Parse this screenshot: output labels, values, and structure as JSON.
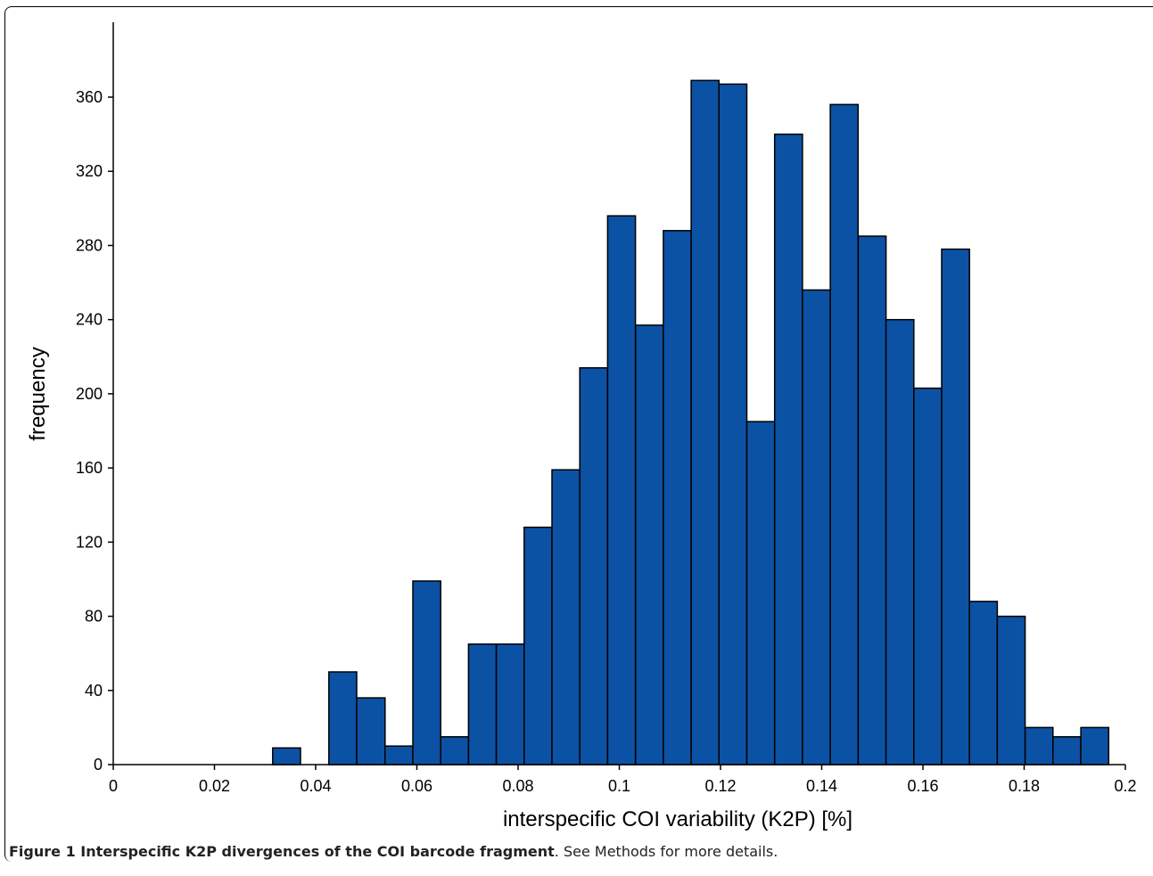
{
  "chart_data": {
    "type": "bar",
    "title": "",
    "xlabel": "interspecific COI variability (K2P) [%]",
    "ylabel": "frequency",
    "xlim": [
      0,
      0.2
    ],
    "ylim": [
      0,
      400
    ],
    "x_ticks": [
      "0",
      "0.02",
      "0.04",
      "0.06",
      "0.08",
      "0.1",
      "0.12",
      "0.14",
      "0.16",
      "0.18",
      "0.2"
    ],
    "y_ticks": [
      "0",
      "40",
      "80",
      "120",
      "160",
      "200",
      "240",
      "280",
      "320",
      "360"
    ],
    "bar_color": "#0c52a4",
    "bins": [
      {
        "x0": 0.0315,
        "x1": 0.037,
        "value": 9
      },
      {
        "x0": 0.0426,
        "x1": 0.0481,
        "value": 50
      },
      {
        "x0": 0.0481,
        "x1": 0.0537,
        "value": 36
      },
      {
        "x0": 0.0537,
        "x1": 0.0592,
        "value": 10
      },
      {
        "x0": 0.0592,
        "x1": 0.0647,
        "value": 99
      },
      {
        "x0": 0.0647,
        "x1": 0.0702,
        "value": 15
      },
      {
        "x0": 0.0702,
        "x1": 0.0757,
        "value": 65
      },
      {
        "x0": 0.0757,
        "x1": 0.0812,
        "value": 65
      },
      {
        "x0": 0.0812,
        "x1": 0.0867,
        "value": 128
      },
      {
        "x0": 0.0867,
        "x1": 0.0922,
        "value": 159
      },
      {
        "x0": 0.0922,
        "x1": 0.0977,
        "value": 214
      },
      {
        "x0": 0.0977,
        "x1": 0.1032,
        "value": 296
      },
      {
        "x0": 0.1032,
        "x1": 0.1087,
        "value": 237
      },
      {
        "x0": 0.1087,
        "x1": 0.1142,
        "value": 288
      },
      {
        "x0": 0.1142,
        "x1": 0.1197,
        "value": 369
      },
      {
        "x0": 0.1197,
        "x1": 0.1252,
        "value": 367
      },
      {
        "x0": 0.1252,
        "x1": 0.1307,
        "value": 185
      },
      {
        "x0": 0.1307,
        "x1": 0.1362,
        "value": 340
      },
      {
        "x0": 0.1362,
        "x1": 0.1417,
        "value": 256
      },
      {
        "x0": 0.1417,
        "x1": 0.1472,
        "value": 356
      },
      {
        "x0": 0.1472,
        "x1": 0.1527,
        "value": 285
      },
      {
        "x0": 0.1527,
        "x1": 0.1582,
        "value": 240
      },
      {
        "x0": 0.1582,
        "x1": 0.1637,
        "value": 203
      },
      {
        "x0": 0.1637,
        "x1": 0.1692,
        "value": 278
      },
      {
        "x0": 0.1692,
        "x1": 0.1747,
        "value": 88
      },
      {
        "x0": 0.1747,
        "x1": 0.1802,
        "value": 80
      },
      {
        "x0": 0.1802,
        "x1": 0.1857,
        "value": 20
      },
      {
        "x0": 0.1857,
        "x1": 0.1912,
        "value": 15
      },
      {
        "x0": 0.1912,
        "x1": 0.1967,
        "value": 20
      }
    ]
  },
  "caption": {
    "bold": "Figure 1 Interspecific K2P divergences of the COI barcode fragment",
    "rest": ". See Methods for more details."
  }
}
